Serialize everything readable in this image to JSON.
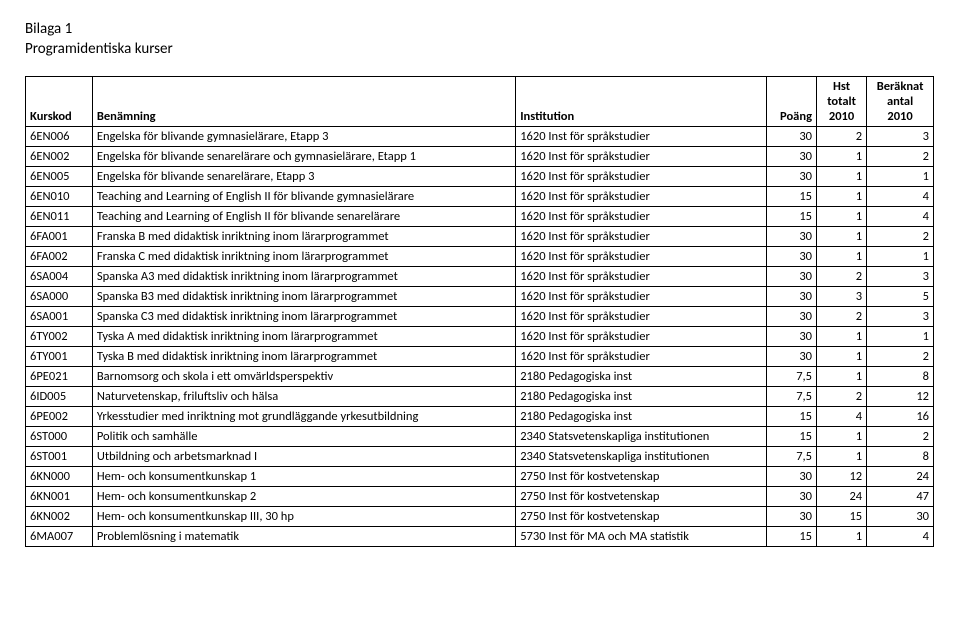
{
  "doc": {
    "title": "Bilaga 1",
    "subtitle": "Programidentiska kurser"
  },
  "table": {
    "headers": {
      "kurskod": "Kurskod",
      "benamning": "Benämning",
      "institution": "Institution",
      "poang": "Poäng",
      "hst": "Hst\ntotalt\n2010",
      "beraknat": "Beräknat\nantal\n2010"
    },
    "rows": [
      {
        "kurskod": "6EN006",
        "benamning": "Engelska för blivande gymnasielärare, Etapp 3",
        "institution": "1620 Inst för språkstudier",
        "poang": "30",
        "hst": "2",
        "beraknat": "3"
      },
      {
        "kurskod": "6EN002",
        "benamning": "Engelska för blivande senarelärare och gymnasielärare, Etapp 1",
        "institution": "1620 Inst för språkstudier",
        "poang": "30",
        "hst": "1",
        "beraknat": "2"
      },
      {
        "kurskod": "6EN005",
        "benamning": "Engelska för blivande senarelärare, Etapp 3",
        "institution": "1620 Inst för språkstudier",
        "poang": "30",
        "hst": "1",
        "beraknat": "1"
      },
      {
        "kurskod": "6EN010",
        "benamning": "Teaching and Learning of English II för blivande gymnasielärare",
        "institution": "1620 Inst för språkstudier",
        "poang": "15",
        "hst": "1",
        "beraknat": "4"
      },
      {
        "kurskod": "6EN011",
        "benamning": "Teaching and Learning of English II för blivande senarelärare",
        "institution": "1620 Inst för språkstudier",
        "poang": "15",
        "hst": "1",
        "beraknat": "4"
      },
      {
        "kurskod": "6FA001",
        "benamning": "Franska B med didaktisk inriktning inom lärarprogrammet",
        "institution": "1620 Inst för språkstudier",
        "poang": "30",
        "hst": "1",
        "beraknat": "2"
      },
      {
        "kurskod": "6FA002",
        "benamning": "Franska C med didaktisk inriktning inom lärarprogrammet",
        "institution": "1620 Inst för språkstudier",
        "poang": "30",
        "hst": "1",
        "beraknat": "1"
      },
      {
        "kurskod": "6SA004",
        "benamning": "Spanska A3 med didaktisk inriktning inom lärarprogrammet",
        "institution": "1620 Inst för språkstudier",
        "poang": "30",
        "hst": "2",
        "beraknat": "3"
      },
      {
        "kurskod": "6SA000",
        "benamning": "Spanska B3 med didaktisk inriktning inom lärarprogrammet",
        "institution": "1620 Inst för språkstudier",
        "poang": "30",
        "hst": "3",
        "beraknat": "5"
      },
      {
        "kurskod": "6SA001",
        "benamning": "Spanska C3 med didaktisk inriktning inom lärarprogrammet",
        "institution": "1620 Inst för språkstudier",
        "poang": "30",
        "hst": "2",
        "beraknat": "3"
      },
      {
        "kurskod": "6TY002",
        "benamning": "Tyska A med didaktisk inriktning inom lärarprogrammet",
        "institution": "1620 Inst för språkstudier",
        "poang": "30",
        "hst": "1",
        "beraknat": "1"
      },
      {
        "kurskod": "6TY001",
        "benamning": "Tyska B med didaktisk inriktning inom lärarprogrammet",
        "institution": "1620 Inst för språkstudier",
        "poang": "30",
        "hst": "1",
        "beraknat": "2"
      },
      {
        "kurskod": "6PE021",
        "benamning": "Barnomsorg och skola i ett omvärldsperspektiv",
        "institution": "2180 Pedagogiska inst",
        "poang": "7,5",
        "hst": "1",
        "beraknat": "8"
      },
      {
        "kurskod": "6ID005",
        "benamning": "Naturvetenskap, friluftsliv och hälsa",
        "institution": "2180 Pedagogiska inst",
        "poang": "7,5",
        "hst": "2",
        "beraknat": "12"
      },
      {
        "kurskod": "6PE002",
        "benamning": "Yrkesstudier med inriktning mot grundläggande yrkesutbildning",
        "institution": "2180 Pedagogiska inst",
        "poang": "15",
        "hst": "4",
        "beraknat": "16"
      },
      {
        "kurskod": "6ST000",
        "benamning": "Politik och samhälle",
        "institution": "2340 Statsvetenskapliga institutionen",
        "poang": "15",
        "hst": "1",
        "beraknat": "2"
      },
      {
        "kurskod": "6ST001",
        "benamning": "Utbildning och arbetsmarknad I",
        "institution": "2340 Statsvetenskapliga institutionen",
        "poang": "7,5",
        "hst": "1",
        "beraknat": "8"
      },
      {
        "kurskod": "6KN000",
        "benamning": "Hem- och konsumentkunskap 1",
        "institution": "2750 Inst för kostvetenskap",
        "poang": "30",
        "hst": "12",
        "beraknat": "24"
      },
      {
        "kurskod": "6KN001",
        "benamning": "Hem- och konsumentkunskap 2",
        "institution": "2750 Inst för kostvetenskap",
        "poang": "30",
        "hst": "24",
        "beraknat": "47"
      },
      {
        "kurskod": "6KN002",
        "benamning": "Hem- och konsumentkunskap III, 30 hp",
        "institution": "2750 Inst för kostvetenskap",
        "poang": "30",
        "hst": "15",
        "beraknat": "30"
      },
      {
        "kurskod": "6MA007",
        "benamning": "Problemlösning i matematik",
        "institution": "5730 Inst för MA och MA statistik",
        "poang": "15",
        "hst": "1",
        "beraknat": "4"
      }
    ]
  }
}
